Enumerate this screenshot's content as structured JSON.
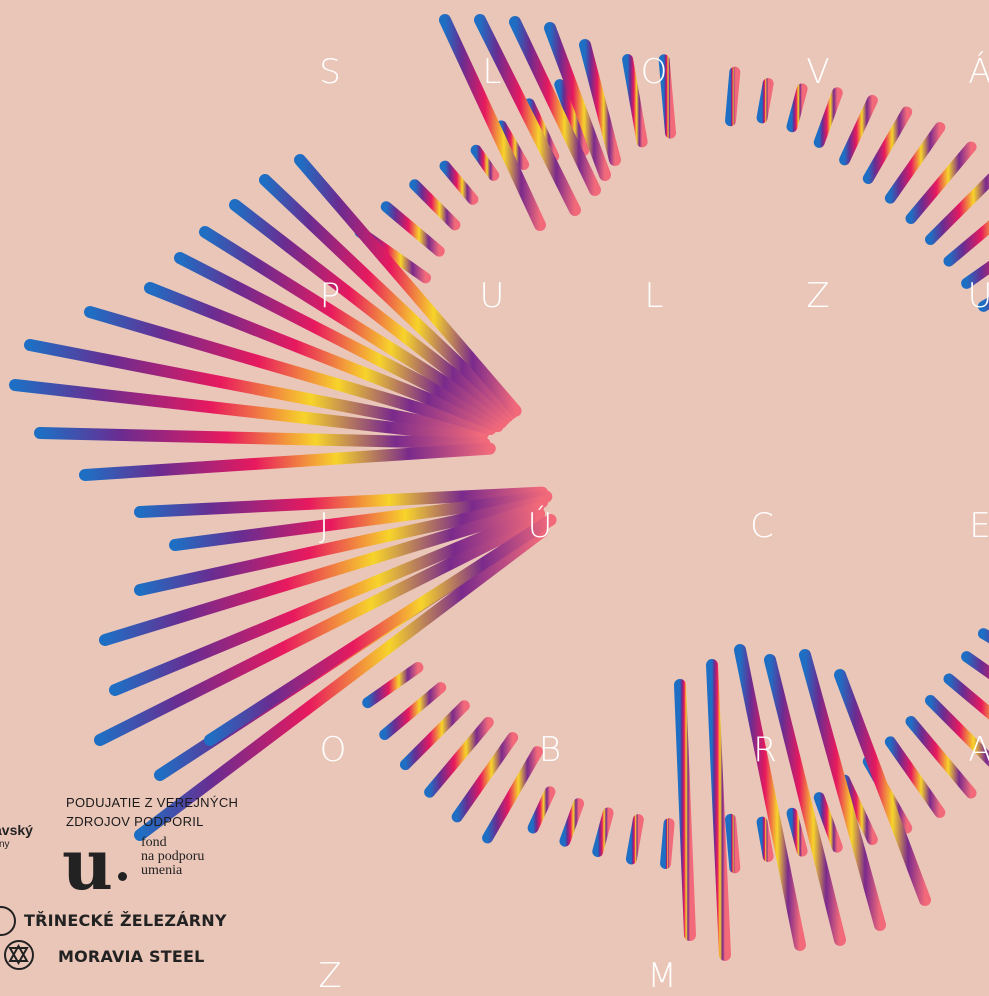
{
  "poster": {
    "background": "#eac6b8",
    "letter_color": "#ffffff",
    "gradient_colors": [
      "#1e6fc4",
      "#6a2c91",
      "#e8195e",
      "#f7d42a",
      "#f26a7a"
    ],
    "letters": {
      "row1": [
        "S",
        "L",
        "O",
        "V",
        "Á"
      ],
      "row2": [
        "P",
        "U",
        "L",
        "Z",
        "U"
      ],
      "row3": [
        "J",
        "Ú",
        "C",
        "E"
      ],
      "row4": [
        "O",
        "B",
        "R",
        "A"
      ],
      "row5": [
        "Z",
        "M"
      ]
    }
  },
  "credits": {
    "line1": "PODUJATIE Z VEREJNÝCH",
    "line2": "ZDROJOV PODPORIL",
    "fund_logo_letter": "u",
    "fund_line1": "fond",
    "fund_line2": "na podporu",
    "fund_line3": "umenia",
    "cut_text1": "avský",
    "cut_text2": "vny"
  },
  "sponsors": [
    {
      "name": "TŘINECKÉ ŽELEZÁRNY",
      "icon": "trinecke-emblem-icon"
    },
    {
      "name": "MORAVIA STEEL",
      "icon": "moravia-steel-emblem-icon"
    }
  ]
}
